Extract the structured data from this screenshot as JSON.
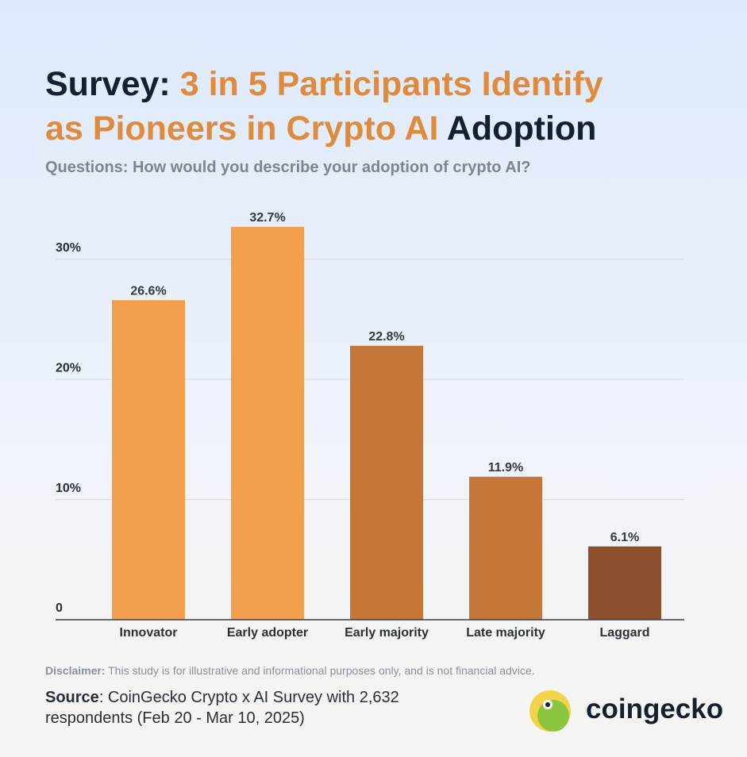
{
  "chart_data": {
    "type": "bar",
    "title_parts": [
      {
        "text": "Survey:",
        "color": "#15202e"
      },
      {
        "text": "3 in 5 Participants Identify",
        "color": "#e08a3c"
      },
      {
        "text": "as Pioneers in Crypto AI",
        "color": "#e08a3c"
      },
      {
        "text": "Adoption",
        "color": "#15202e"
      }
    ],
    "subtitle": "Questions: How would you describe your adoption of crypto AI?",
    "categories": [
      "Innovator",
      "Early adopter",
      "Early majority",
      "Late majority",
      "Laggard"
    ],
    "values": [
      26.6,
      32.7,
      22.8,
      11.9,
      6.1
    ],
    "value_labels": [
      "26.6%",
      "32.7%",
      "22.8%",
      "11.9%",
      "6.1%"
    ],
    "colors": [
      "#f2a04e",
      "#f2a04e",
      "#c47739",
      "#c47739",
      "#8c4e2b"
    ],
    "ylim": [
      0,
      35
    ],
    "yticks": [
      0,
      {
        "value": 10,
        "label": "10%"
      },
      {
        "value": 20,
        "label": "20%"
      },
      {
        "value": 30,
        "label": "30%"
      }
    ],
    "grid": true,
    "disclaimer_label": "Disclaimer:",
    "disclaimer_text": "This study is for illustrative and informational purposes only, and is not financial advice.",
    "source_label": "Source",
    "source_text": ": CoinGecko Crypto x AI Survey with 2,632 respondents (Feb 20 - Mar 10, 2025)",
    "logo": "coingecko"
  }
}
